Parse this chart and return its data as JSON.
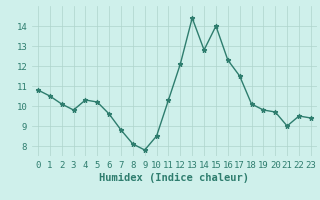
{
  "x": [
    0,
    1,
    2,
    3,
    4,
    5,
    6,
    7,
    8,
    9,
    10,
    11,
    12,
    13,
    14,
    15,
    16,
    17,
    18,
    19,
    20,
    21,
    22,
    23
  ],
  "y": [
    10.8,
    10.5,
    10.1,
    9.8,
    10.3,
    10.2,
    9.6,
    8.8,
    8.1,
    7.8,
    8.5,
    10.3,
    12.1,
    14.4,
    12.8,
    14.0,
    12.3,
    11.5,
    10.1,
    9.8,
    9.7,
    9.0,
    9.5,
    9.4
  ],
  "xlabel": "Humidex (Indice chaleur)",
  "ylim": [
    7.5,
    15.0
  ],
  "xlim": [
    -0.5,
    23.5
  ],
  "yticks": [
    8,
    9,
    10,
    11,
    12,
    13,
    14
  ],
  "line_color": "#2e7d6e",
  "marker": "*",
  "marker_size": 3.5,
  "bg_color": "#cff0eb",
  "grid_color": "#aed4cc",
  "xlabel_color": "#2e7d6e",
  "tick_color": "#2e7d6e",
  "axis_label_fontsize": 7.5,
  "tick_fontsize": 6.5,
  "linewidth": 1.0
}
